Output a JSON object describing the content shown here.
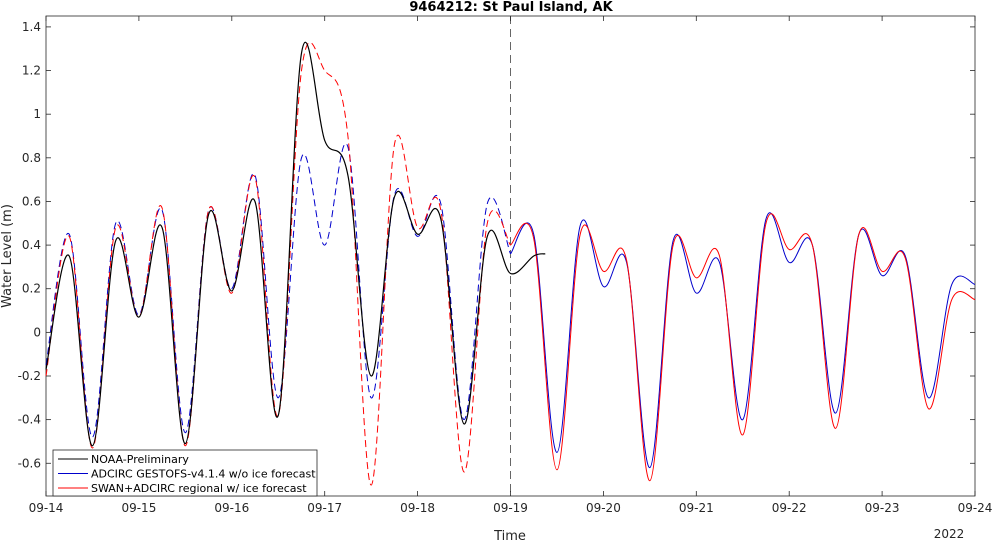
{
  "chart_data": {
    "type": "line",
    "title": "9464212: St Paul Island, AK",
    "xlabel": "Time",
    "ylabel": "Water Level (m)",
    "x_ticks": [
      "09-14",
      "09-15",
      "09-16",
      "09-17",
      "09-18",
      "09-19",
      "09-20",
      "09-21",
      "09-22",
      "09-23",
      "09-24"
    ],
    "x_year_label": "2022",
    "xlim": [
      "2022-09-14T00:00",
      "2022-09-24T00:00"
    ],
    "ylim": [
      -0.75,
      1.45
    ],
    "y_ticks": [
      -0.6,
      -0.4,
      -0.2,
      0,
      0.2,
      0.4,
      0.6,
      0.8,
      1,
      1.2,
      1.4
    ],
    "y_tick_labels": [
      "-0.6",
      "-0.4",
      "-0.2",
      "0",
      "0.2",
      "0.4",
      "0.6",
      "0.8",
      "1",
      "1.2",
      "1.4"
    ],
    "grid": false,
    "legend_position": "bottom-left",
    "forecast_start_marker": "2022-09-19T00:00",
    "series": [
      {
        "name": "NOAA-Preliminary",
        "color": "#000000",
        "style": "solid",
        "x": [
          "09-14 00:00",
          "09-14 06:00",
          "09-14 12:00",
          "09-14 18:00",
          "09-15 00:00",
          "09-15 06:00",
          "09-15 12:00",
          "09-15 18:00",
          "09-16 00:00",
          "09-16 06:00",
          "09-16 12:00",
          "09-16 18:00",
          "09-17 00:00",
          "09-17 06:00",
          "09-17 12:00",
          "09-17 18:00",
          "09-18 00:00",
          "09-18 06:00",
          "09-18 12:00",
          "09-18 18:00",
          "09-19 00:00",
          "09-19 06:00",
          "09-19 09:00"
        ],
        "y": [
          -0.17,
          0.35,
          -0.52,
          0.42,
          0.07,
          0.48,
          -0.51,
          0.54,
          0.19,
          0.6,
          -0.38,
          1.28,
          0.88,
          0.72,
          -0.2,
          0.62,
          0.45,
          0.52,
          -0.42,
          0.44,
          0.27,
          0.35,
          0.36
        ]
      },
      {
        "name": "ADCIRC GESTOFS-v4.1.4 w/o ice forecast",
        "color": "#0000cc",
        "style": "dashed-then-solid",
        "x": [
          "09-14 00:00",
          "09-14 06:00",
          "09-14 12:00",
          "09-14 18:00",
          "09-15 00:00",
          "09-15 06:00",
          "09-15 12:00",
          "09-15 18:00",
          "09-16 00:00",
          "09-16 06:00",
          "09-16 12:00",
          "09-16 18:00",
          "09-17 00:00",
          "09-17 06:00",
          "09-17 12:00",
          "09-17 18:00",
          "09-18 00:00",
          "09-18 06:00",
          "09-18 12:00",
          "09-18 18:00",
          "09-19 00:00",
          "09-19 06:00",
          "09-19 12:00",
          "09-19 18:00",
          "09-20 00:00",
          "09-20 06:00",
          "09-20 12:00",
          "09-20 18:00",
          "09-21 00:00",
          "09-21 06:00",
          "09-21 12:00",
          "09-21 18:00",
          "09-22 00:00",
          "09-22 06:00",
          "09-22 12:00",
          "09-22 18:00",
          "09-23 00:00",
          "09-23 06:00",
          "09-23 12:00",
          "09-23 18:00",
          "09-24 00:00"
        ],
        "y": [
          -0.15,
          0.45,
          -0.48,
          0.5,
          0.08,
          0.56,
          -0.46,
          0.56,
          0.2,
          0.72,
          -0.3,
          0.8,
          0.4,
          0.85,
          -0.3,
          0.63,
          0.44,
          0.59,
          -0.4,
          0.59,
          0.36,
          0.45,
          -0.55,
          0.49,
          0.21,
          0.32,
          -0.62,
          0.42,
          0.18,
          0.32,
          -0.4,
          0.52,
          0.32,
          0.4,
          -0.37,
          0.45,
          0.26,
          0.35,
          -0.3,
          0.22,
          0.22
        ]
      },
      {
        "name": "SWAN+ADCIRC regional w/ ice forecast",
        "color": "#ff0000",
        "style": "dashed-then-solid",
        "x": [
          "09-14 00:00",
          "09-14 06:00",
          "09-14 12:00",
          "09-14 18:00",
          "09-15 00:00",
          "09-15 06:00",
          "09-15 12:00",
          "09-15 18:00",
          "09-16 00:00",
          "09-16 06:00",
          "09-16 12:00",
          "09-16 18:00",
          "09-17 00:00",
          "09-17 06:00",
          "09-17 12:00",
          "09-17 18:00",
          "09-18 00:00",
          "09-18 06:00",
          "09-18 12:00",
          "09-18 18:00",
          "09-19 00:00",
          "09-19 06:00",
          "09-19 12:00",
          "09-19 18:00",
          "09-20 00:00",
          "09-20 06:00",
          "09-20 12:00",
          "09-20 18:00",
          "09-21 00:00",
          "09-21 06:00",
          "09-21 12:00",
          "09-21 18:00",
          "09-22 00:00",
          "09-22 06:00",
          "09-22 12:00",
          "09-22 18:00",
          "09-23 00:00",
          "09-23 06:00",
          "09-23 12:00",
          "09-23 18:00",
          "09-24 00:00"
        ],
        "y": [
          -0.2,
          0.44,
          -0.53,
          0.48,
          0.07,
          0.57,
          -0.52,
          0.56,
          0.18,
          0.71,
          -0.38,
          1.2,
          1.2,
          0.9,
          -0.7,
          0.86,
          0.48,
          0.56,
          -0.64,
          0.5,
          0.4,
          0.43,
          -0.63,
          0.45,
          0.28,
          0.33,
          -0.68,
          0.4,
          0.25,
          0.35,
          -0.47,
          0.5,
          0.38,
          0.4,
          -0.44,
          0.45,
          0.28,
          0.34,
          -0.35,
          0.15,
          0.15
        ]
      }
    ]
  }
}
